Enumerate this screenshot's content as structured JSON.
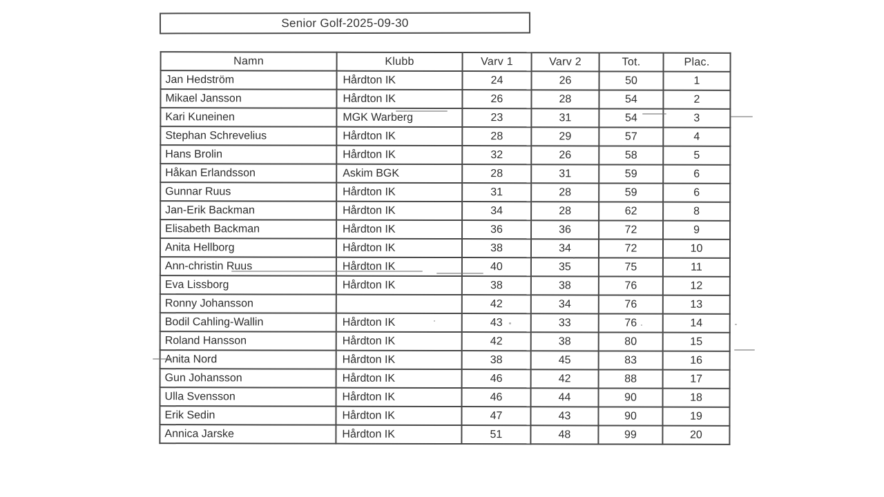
{
  "title": "Senior Golf-2025-09-30",
  "table": {
    "columns": [
      "Namn",
      "Klubb",
      "Varv 1",
      "Varv 2",
      "Tot.",
      "Plac."
    ],
    "rows": [
      {
        "namn": "Jan Hedström",
        "klubb": "Hårdton IK",
        "varv1": "24",
        "varv2": "26",
        "tot": "50",
        "plac": "1"
      },
      {
        "namn": "Mikael Jansson",
        "klubb": "Hårdton IK",
        "varv1": "26",
        "varv2": "28",
        "tot": "54",
        "plac": "2"
      },
      {
        "namn": "Kari Kuneinen",
        "klubb": "MGK Warberg",
        "varv1": "23",
        "varv2": "31",
        "tot": "54",
        "plac": "3"
      },
      {
        "namn": "Stephan Schrevelius",
        "klubb": "Hårdton IK",
        "varv1": "28",
        "varv2": "29",
        "tot": "57",
        "plac": "4"
      },
      {
        "namn": "Hans Brolin",
        "klubb": "Hårdton IK",
        "varv1": "32",
        "varv2": "26",
        "tot": "58",
        "plac": "5"
      },
      {
        "namn": "Håkan Erlandsson",
        "klubb": "Askim BGK",
        "varv1": "28",
        "varv2": "31",
        "tot": "59",
        "plac": "6"
      },
      {
        "namn": "Gunnar Ruus",
        "klubb": "Hårdton IK",
        "varv1": "31",
        "varv2": "28",
        "tot": "59",
        "plac": "6"
      },
      {
        "namn": "Jan-Erik Backman",
        "klubb": "Hårdton IK",
        "varv1": "34",
        "varv2": "28",
        "tot": "62",
        "plac": "8"
      },
      {
        "namn": "Elisabeth Backman",
        "klubb": "Hårdton IK",
        "varv1": "36",
        "varv2": "36",
        "tot": "72",
        "plac": "9"
      },
      {
        "namn": "Anita Hellborg",
        "klubb": "Hårdton IK",
        "varv1": "38",
        "varv2": "34",
        "tot": "72",
        "plac": "10"
      },
      {
        "namn": "Ann-christin Ruus",
        "klubb": "Hårdton IK",
        "varv1": "40",
        "varv2": "35",
        "tot": "75",
        "plac": "11"
      },
      {
        "namn": "Eva Lissborg",
        "klubb": "Hårdton IK",
        "varv1": "38",
        "varv2": "38",
        "tot": "76",
        "plac": "12"
      },
      {
        "namn": "Ronny Johansson",
        "klubb": "",
        "varv1": "42",
        "varv2": "34",
        "tot": "76",
        "plac": "13"
      },
      {
        "namn": "Bodil Cahling-Wallin",
        "klubb": "Hårdton IK",
        "varv1": "43",
        "varv2": "33",
        "tot": "76",
        "plac": "14"
      },
      {
        "namn": "Roland Hansson",
        "klubb": "Hårdton IK",
        "varv1": "42",
        "varv2": "38",
        "tot": "80",
        "plac": "15"
      },
      {
        "namn": "Anita Nord",
        "klubb": "Hårdton IK",
        "varv1": "38",
        "varv2": "45",
        "tot": "83",
        "plac": "16"
      },
      {
        "namn": "Gun Johansson",
        "klubb": "Hårdton IK",
        "varv1": "46",
        "varv2": "42",
        "tot": "88",
        "plac": "17"
      },
      {
        "namn": "Ulla Svensson",
        "klubb": "Hårdton IK",
        "varv1": "46",
        "varv2": "44",
        "tot": "90",
        "plac": "18"
      },
      {
        "namn": "Erik Sedin",
        "klubb": "Hårdton IK",
        "varv1": "47",
        "varv2": "43",
        "tot": "90",
        "plac": "19"
      },
      {
        "namn": "Annica Jarske",
        "klubb": "Hårdton IK",
        "varv1": "51",
        "varv2": "48",
        "tot": "99",
        "plac": "20"
      }
    ]
  }
}
